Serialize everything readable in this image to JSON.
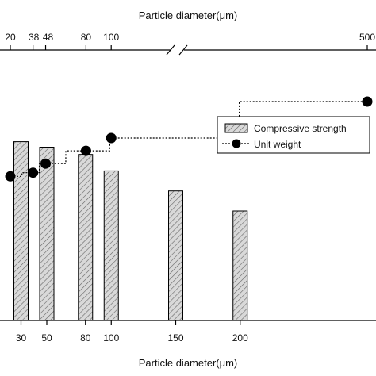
{
  "chart_data": {
    "type": "bar",
    "title": "",
    "bottom_axis": {
      "label": "Particle diameter(μm)",
      "ticks": [
        30,
        50,
        80,
        100,
        150,
        200
      ],
      "tick_labels": [
        "30",
        "50",
        "80",
        "100",
        "150",
        "200"
      ]
    },
    "top_axis": {
      "label": "Particle diameter(μm)",
      "ticks": [
        20,
        38,
        48,
        80,
        100,
        500
      ],
      "tick_labels": [
        "20",
        "38",
        "48",
        "80",
        "100",
        "500"
      ],
      "broken": true
    },
    "legend": {
      "placement": "right"
    },
    "series": [
      {
        "name": "Compressive strength",
        "style": "hatched-bar",
        "color": "#d9d9d9",
        "x": [
          30,
          50,
          80,
          100,
          150,
          200
        ],
        "values": [
          0.98,
          0.95,
          0.91,
          0.82,
          0.71,
          0.6
        ]
      },
      {
        "name": "Unit weight",
        "style": "dotted-step-line-with-markers",
        "color": "#000000",
        "x": [
          20,
          38,
          48,
          80,
          100,
          500
        ],
        "values": [
          0.79,
          0.81,
          0.86,
          0.93,
          1.0,
          1.2
        ]
      }
    ]
  }
}
